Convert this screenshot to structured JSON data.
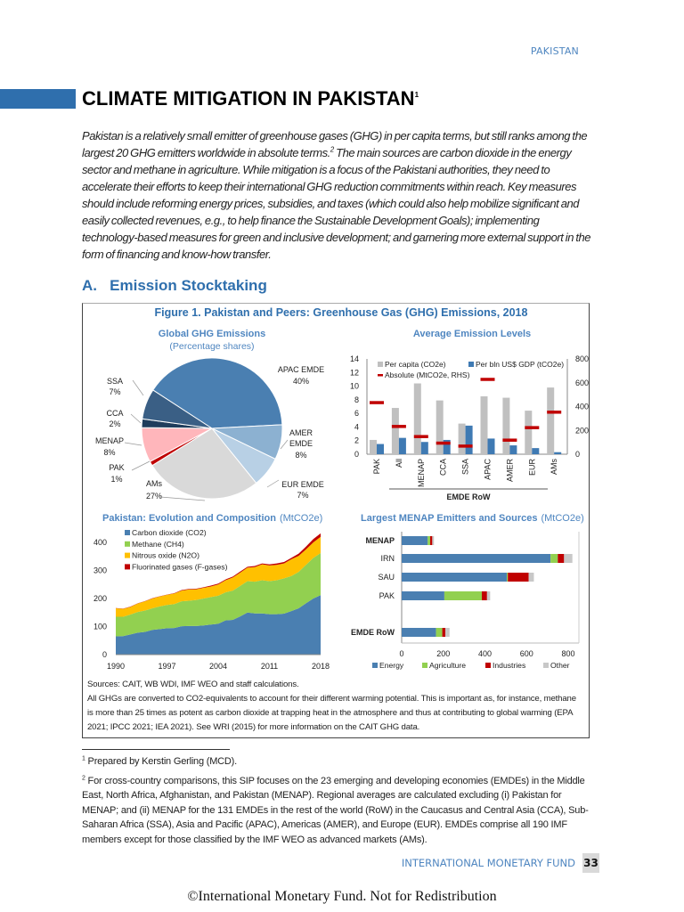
{
  "header": {
    "section": "PAKISTAN"
  },
  "title": {
    "text": "CLIMATE MITIGATION IN PAKISTAN",
    "footnote_ref": "1"
  },
  "intro": {
    "part1": "Pakistan is a relatively small emitter of greenhouse gases (GHG) in per capita terms, but still ranks among the largest 20 GHG emitters worldwide in absolute terms.",
    "footnote_ref": "2",
    "part2": " The main sources are carbon dioxide in the energy sector and methane in agriculture. While mitigation is a focus of the Pakistani authorities, they need to accelerate their efforts to keep their international GHG reduction commitments within reach. Key measures should include reforming energy prices, subsidies, and taxes (which could also help mobilize significant and easily collected revenues, e.g., to help finance the Sustainable Development Goals); implementing technology-based measures for green and inclusive development; and garnering more external support in the form of financing and know-how transfer."
  },
  "section": {
    "heading": "A.   Emission Stocktaking"
  },
  "figure": {
    "title": "Figure 1. Pakistan and Peers: Greenhouse Gas (GHG) Emissions, 2018",
    "sources": "Sources: CAIT, WB WDI, IMF WEO and staff calculations.",
    "note": "All GHGs are converted to CO2-equivalents to account for their different warming potential. This is important as, for instance, methane is more than 25 times as potent as carbon dioxide at trapping heat in the atmosphere and thus at contributing to global warming (EPA 2021; IPCC 2021; IEA 2021). See WRI (2015) for more information on the CAIT GHG data."
  },
  "chart_data": [
    {
      "type": "pie",
      "title": "Global GHG Emissions",
      "subtitle": "(Percentage shares)",
      "slices": [
        {
          "label": "APAC EMDE",
          "value": 40,
          "display": "40%",
          "color": "#4a7fb1"
        },
        {
          "label": "AMER EMDE",
          "value": 8,
          "display": "8%",
          "color": "#8cb1d1"
        },
        {
          "label": "EUR EMDE",
          "value": 7,
          "display": "7%",
          "color": "#b8d0e5"
        },
        {
          "label": "AMs",
          "value": 27,
          "display": "27%",
          "color": "#d9d9d9"
        },
        {
          "label": "PAK",
          "value": 1,
          "display": "1%",
          "color": "#c00000"
        },
        {
          "label": "MENAP",
          "value": 8,
          "display": "8%",
          "color": "#ffb6bb"
        },
        {
          "label": "CCA",
          "value": 2,
          "display": "2%",
          "color": "#1f3d5c"
        },
        {
          "label": "SSA",
          "value": 7,
          "display": "7%",
          "color": "#3a5f85"
        }
      ]
    },
    {
      "type": "bar",
      "title": "Average Emission Levels",
      "categories": [
        "PAK",
        "All",
        "MENAP",
        "CCA",
        "SSA",
        "APAC",
        "AMER",
        "EUR",
        "AMs"
      ],
      "group_label": "EMDE RoW",
      "ylim": [
        0,
        14
      ],
      "yticks": [
        0,
        2,
        4,
        6,
        8,
        10,
        12,
        14
      ],
      "y2lim": [
        0,
        800
      ],
      "y2ticks": [
        0,
        200,
        400,
        600,
        800
      ],
      "series": [
        {
          "name": "Per capita (CO2e)",
          "axis": "left",
          "color": "#c0c0c0",
          "values": [
            2.1,
            6.8,
            10.4,
            7.9,
            4.5,
            8.5,
            8.3,
            6.4,
            9.8
          ]
        },
        {
          "name": "Per bln US$ GDP (tCO2e)",
          "axis": "left",
          "color": "#3f7ab3",
          "values": [
            1.5,
            2.4,
            1.8,
            2.1,
            4.2,
            2.3,
            1.3,
            0.9,
            0.3
          ]
        },
        {
          "name": "Absolute (MtCO2e, RHS)",
          "axis": "right",
          "color": "#c00000",
          "values": [
            435,
            235,
            150,
            95,
            70,
            630,
            120,
            225,
            355
          ]
        }
      ]
    },
    {
      "type": "area",
      "title": "Pakistan: Evolution and Composition",
      "unit": "(MtCO2e)",
      "xlim": [
        1990,
        2018
      ],
      "xticks": [
        1990,
        1997,
        2004,
        2011,
        2018
      ],
      "ylim": [
        0,
        400
      ],
      "yticks": [
        0,
        100,
        200,
        300,
        400
      ],
      "x": [
        1990,
        1991,
        1992,
        1993,
        1994,
        1995,
        1996,
        1997,
        1998,
        1999,
        2000,
        2001,
        2002,
        2003,
        2004,
        2005,
        2006,
        2007,
        2008,
        2009,
        2010,
        2011,
        2012,
        2013,
        2014,
        2015,
        2016,
        2017,
        2018
      ],
      "series": [
        {
          "name": "Carbon dioxide (CO2)",
          "color": "#4a7fb1",
          "values": [
            65,
            66,
            72,
            78,
            81,
            88,
            91,
            94,
            95,
            101,
            102,
            102,
            104,
            107,
            110,
            122,
            124,
            136,
            150,
            147,
            147,
            144,
            144,
            146,
            155,
            165,
            183,
            200,
            212
          ]
        },
        {
          "name": "Methane (CH4)",
          "color": "#92d050",
          "values": [
            70,
            69,
            71,
            74,
            76,
            77,
            81,
            83,
            85,
            89,
            90,
            93,
            96,
            98,
            100,
            100,
            104,
            109,
            112,
            113,
            118,
            118,
            121,
            126,
            125,
            130,
            137,
            145,
            150
          ]
        },
        {
          "name": "Nitrous oxide (N2O)",
          "color": "#ffc000",
          "values": [
            30,
            28,
            27,
            30,
            33,
            35,
            35,
            36,
            38,
            38,
            40,
            38,
            38,
            38,
            40,
            43,
            47,
            47,
            48,
            52,
            57,
            56,
            55,
            53,
            60,
            57,
            55,
            55,
            58
          ]
        },
        {
          "name": "Fluorinated gases (F-gases)",
          "color": "#c00000",
          "values": [
            1,
            1,
            1,
            1,
            1,
            1,
            1,
            1,
            1,
            2,
            2,
            2,
            2,
            3,
            3,
            3,
            3,
            4,
            3,
            4,
            3,
            4,
            5,
            5,
            5,
            8,
            10,
            12,
            12
          ]
        }
      ]
    },
    {
      "type": "bar",
      "orientation": "horizontal-stacked",
      "title": "Largest MENAP Emitters and Sources",
      "unit": "(MtCO2e)",
      "xlim": [
        0,
        800
      ],
      "xticks": [
        0,
        200,
        400,
        600,
        800
      ],
      "categories": [
        "MENAP",
        "IRN",
        "SAU",
        "PAK",
        "EMDE RoW"
      ],
      "bold_categories": [
        "MENAP",
        "EMDE RoW"
      ],
      "series": [
        {
          "name": "Energy",
          "color": "#4a7fb1",
          "values": [
            125,
            715,
            505,
            205,
            165
          ]
        },
        {
          "name": "Agriculture",
          "color": "#92d050",
          "values": [
            12,
            35,
            5,
            180,
            30
          ]
        },
        {
          "name": "Industries",
          "color": "#c00000",
          "values": [
            10,
            30,
            100,
            25,
            15
          ]
        },
        {
          "name": "Other",
          "color": "#c8c8c8",
          "values": [
            8,
            40,
            25,
            15,
            20
          ]
        }
      ]
    }
  ],
  "footnotes": [
    {
      "ref": "1",
      "text": " Prepared by Kerstin Gerling (MCD)."
    },
    {
      "ref": "2",
      "text": " For cross-country comparisons, this SIP focuses on the 23 emerging and developing economies (EMDEs) in the Middle East, North Africa, Afghanistan, and Pakistan (MENAP). Regional averages are calculated excluding (i) Pakistan for MENAP; and (ii) MENAP for the 131 EMDEs in the rest of the world (RoW) in the Caucasus and Central Asia (CCA), Sub-Saharan Africa (SSA), Asia and Pacific (APAC), Americas (AMER), and Europe (EUR). EMDEs comprise all 190 IMF members except for those classified by the IMF WEO as advanced markets (AMs)."
    }
  ],
  "footer": {
    "publisher": "INTERNATIONAL MONETARY FUND",
    "page": "33"
  },
  "watermark": "©International Monetary Fund. Not for Redistribution"
}
